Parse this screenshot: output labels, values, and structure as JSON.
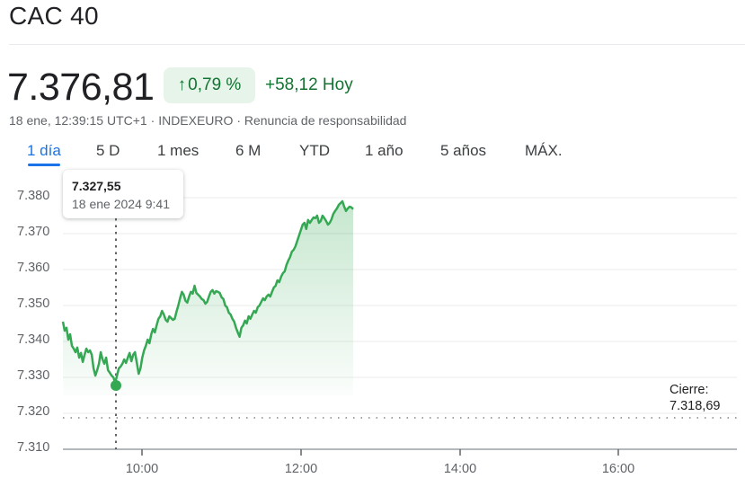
{
  "header": {
    "title": "CAC 40",
    "price": "7.376,81",
    "change_percent": "0,79 %",
    "change_arrow": "↑",
    "change_points": "+58,12 Hoy",
    "timestamp": "18 ene, 12:39:15 UTC+1",
    "separator": "·",
    "exchange": "INDEXEURO",
    "disclaimer": "Renuncia de responsabilidad"
  },
  "tabs": [
    {
      "label": "1 día",
      "active": true
    },
    {
      "label": "5 D",
      "active": false
    },
    {
      "label": "1 mes",
      "active": false
    },
    {
      "label": "6 M",
      "active": false
    },
    {
      "label": "YTD",
      "active": false
    },
    {
      "label": "1 año",
      "active": false
    },
    {
      "label": "5 años",
      "active": false
    },
    {
      "label": "MÁX.",
      "active": false
    }
  ],
  "tooltip": {
    "value": "7.327,55",
    "date": "18 ene 2024 9:41"
  },
  "close": {
    "label": "Cierre:",
    "value": "7.318,69"
  },
  "colors": {
    "up_green": "#34a853",
    "text_green": "#137333",
    "badge_bg": "#e6f4ea",
    "accent_blue": "#1a73e8"
  },
  "chart_data": {
    "type": "line",
    "title": "CAC 40 — 1 día",
    "xlabel": "",
    "ylabel": "",
    "y_ticks": [
      "7.380",
      "7.370",
      "7.360",
      "7.350",
      "7.340",
      "7.330",
      "7.320",
      "7.310"
    ],
    "x_ticks": [
      "10:00",
      "12:00",
      "14:00",
      "16:00"
    ],
    "ylim": [
      7310,
      7382
    ],
    "xlim": [
      "09:00",
      "17:30"
    ],
    "grid": true,
    "legend": "none",
    "previous_close": 7318.69,
    "hover_point": {
      "time": "09:41",
      "value": 7327.55
    },
    "series": [
      {
        "name": "CAC 40",
        "x_start": "09:00",
        "x_end": "12:39",
        "values": [
          7345.5,
          7343.0,
          7343.8,
          7340.5,
          7342.0,
          7338.8,
          7338.0,
          7337.0,
          7338.3,
          7335.5,
          7336.8,
          7334.3,
          7336.3,
          7338.0,
          7337.0,
          7337.5,
          7336.3,
          7332.5,
          7330.5,
          7332.0,
          7333.8,
          7337.0,
          7335.0,
          7333.8,
          7335.5,
          7332.0,
          7331.3,
          7330.5,
          7330.0,
          7328.5,
          7330.5,
          7332.5,
          7333.0,
          7333.8,
          7335.0,
          7334.0,
          7335.5,
          7336.8,
          7334.5,
          7336.3,
          7337.0,
          7334.0,
          7331.0,
          7332.5,
          7335.5,
          7337.5,
          7338.8,
          7340.5,
          7339.5,
          7342.0,
          7343.5,
          7342.5,
          7344.5,
          7346.3,
          7347.0,
          7348.5,
          7347.5,
          7346.0,
          7345.5,
          7347.0,
          7346.5,
          7346.0,
          7346.3,
          7348.3,
          7350.0,
          7352.0,
          7353.8,
          7353.0,
          7351.3,
          7350.8,
          7352.5,
          7353.8,
          7353.3,
          7355.5,
          7353.5,
          7353.0,
          7352.5,
          7351.8,
          7351.5,
          7350.5,
          7351.0,
          7352.5,
          7353.8,
          7354.3,
          7353.3,
          7354.0,
          7353.8,
          7353.5,
          7352.3,
          7351.8,
          7350.0,
          7349.5,
          7348.0,
          7347.5,
          7346.3,
          7345.5,
          7343.8,
          7342.5,
          7341.3,
          7343.8,
          7344.5,
          7345.8,
          7345.0,
          7347.0,
          7346.3,
          7347.5,
          7348.5,
          7348.0,
          7349.5,
          7350.0,
          7351.0,
          7352.0,
          7351.5,
          7352.5,
          7353.0,
          7352.5,
          7353.8,
          7355.0,
          7355.5,
          7357.0,
          7356.5,
          7358.0,
          7359.0,
          7359.5,
          7361.3,
          7362.5,
          7363.5,
          7365.0,
          7365.5,
          7366.5,
          7368.0,
          7369.5,
          7371.0,
          7372.5,
          7373.0,
          7371.3,
          7373.8,
          7373.0,
          7373.8,
          7374.5,
          7374.3,
          7375.0,
          7373.0,
          7373.5,
          7375.0,
          7374.3,
          7373.5,
          7372.5,
          7373.0,
          7374.0,
          7375.5,
          7376.3,
          7377.0,
          7378.0,
          7378.5,
          7379.0,
          7377.5,
          7376.3,
          7377.0,
          7377.5,
          7377.3,
          7376.8
        ]
      }
    ]
  }
}
